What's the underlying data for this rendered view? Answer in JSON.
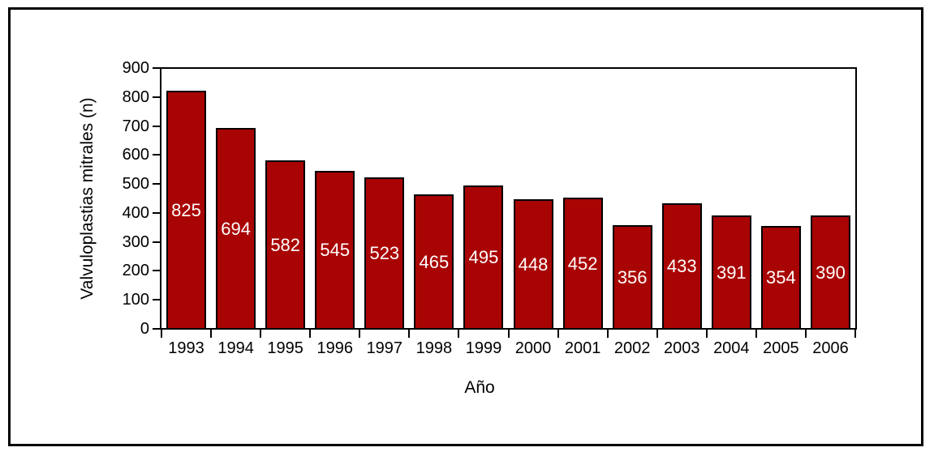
{
  "figure": {
    "background_color": "#ffffff",
    "frame_color": "#000000"
  },
  "chart_data": {
    "type": "bar",
    "title": "",
    "xlabel": "Año",
    "ylabel": "Valvuloplastias mitrales (n)",
    "categories": [
      "1993",
      "1994",
      "1995",
      "1996",
      "1997",
      "1998",
      "1999",
      "2000",
      "2001",
      "2002",
      "2003",
      "2004",
      "2005",
      "2006"
    ],
    "values": [
      825,
      694,
      582,
      545,
      523,
      465,
      495,
      448,
      452,
      356,
      433,
      391,
      354,
      390
    ],
    "value_labels": [
      "825",
      "694",
      "582",
      "545",
      "523",
      "465",
      "495",
      "448",
      "452",
      "356",
      "433",
      "391",
      "354",
      "390"
    ],
    "ylim": [
      0,
      900
    ],
    "ytick_step": 100,
    "ytick_labels": [
      "0",
      "100",
      "200",
      "300",
      "400",
      "500",
      "600",
      "700",
      "800",
      "900"
    ],
    "grid": false,
    "legend_position": "none",
    "bar_color": "#a90404",
    "bar_border_color": "#000000",
    "value_label_color": "#ffffff",
    "axis_color": "#000000",
    "tick_label_color": "#000000"
  }
}
